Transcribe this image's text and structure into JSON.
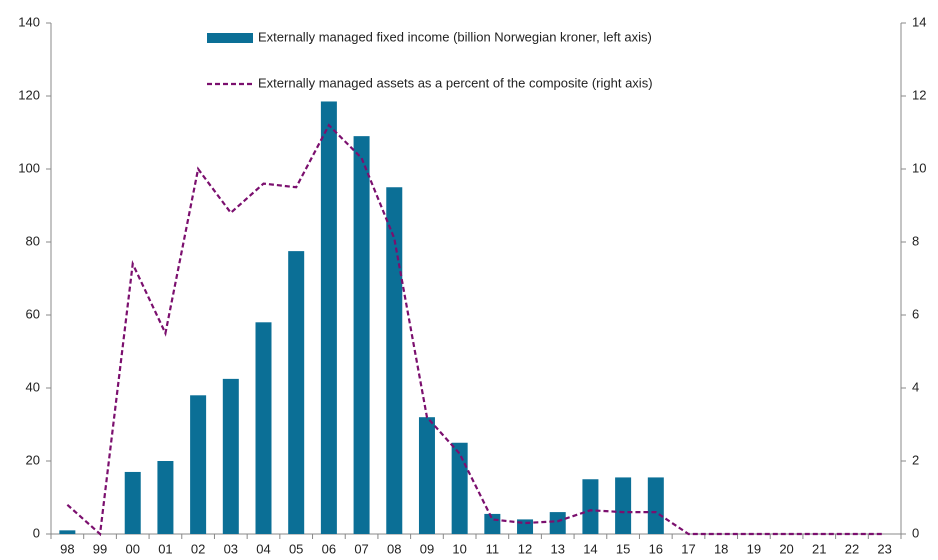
{
  "chart_data": {
    "type": "bar-line",
    "categories": [
      "98",
      "99",
      "00",
      "01",
      "02",
      "03",
      "04",
      "05",
      "06",
      "07",
      "08",
      "09",
      "10",
      "11",
      "12",
      "13",
      "14",
      "15",
      "16",
      "17",
      "18",
      "19",
      "20",
      "21",
      "22",
      "23"
    ],
    "series": [
      {
        "name": "Externally managed fixed income (billion Norwegian kroner, left axis)",
        "type": "bar",
        "color": "#0b6f96",
        "values": [
          1,
          0,
          17,
          20,
          38,
          42.5,
          58,
          77.5,
          118.5,
          109,
          95,
          32,
          25,
          5.5,
          4,
          6,
          15,
          15.5,
          15.5,
          0,
          0,
          0,
          0,
          0,
          0,
          0
        ]
      },
      {
        "name": "Externally managed assets as a percent of the composite (right axis)",
        "type": "line",
        "axis": "y2",
        "color": "#7b0f6e",
        "dashed": true,
        "values": [
          0.8,
          0,
          7.4,
          5.5,
          10,
          8.8,
          9.6,
          9.5,
          11.2,
          10.3,
          8.1,
          3.2,
          2.2,
          0.4,
          0.3,
          0.35,
          0.65,
          0.6,
          0.6,
          0,
          0,
          0,
          0,
          0,
          0,
          0
        ]
      }
    ],
    "ylim": [
      0,
      140
    ],
    "yticks": [
      0,
      20,
      40,
      60,
      80,
      100,
      120,
      140
    ],
    "y2lim": [
      0,
      14
    ],
    "y2ticks": [
      0,
      2,
      4,
      6,
      8,
      10,
      12,
      14
    ],
    "legend": "top"
  }
}
